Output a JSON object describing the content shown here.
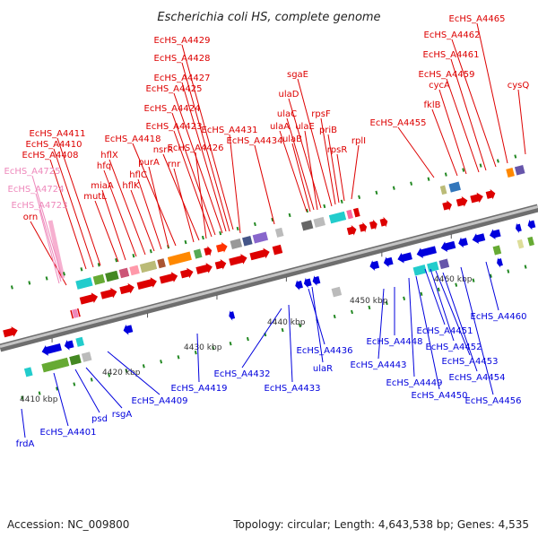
{
  "title": "Escherichia coli HS, complete genome",
  "footer": {
    "accession": "Accession: NC_009800",
    "summary": "Topology: circular; Length: 4,643,538 bp; Genes: 4,535"
  },
  "colors": {
    "forward": "#dd0000",
    "reverse": "#0000dd",
    "pseudo": "#ee88bb",
    "backbone": "#9a9a9a",
    "tick": "#228822"
  },
  "axis_ticks": [
    "4410 kbp",
    "4420 kbp",
    "4430 kbp",
    "4440 kbp",
    "4450 kbp",
    "4460 kbp"
  ],
  "top_labels": [
    "EcHS_A4465",
    "EcHS_A4462",
    "EcHS_A4461",
    "EcHS_A4459",
    "cysQ",
    "cycA",
    "fklB",
    "EcHS_A4455",
    "rplI",
    "rpsR",
    "priB",
    "rpsF",
    "sgaE",
    "ulaD",
    "ulaC",
    "ulaE",
    "ulaA",
    "ulaB",
    "EcHS_A4429",
    "EcHS_A4428",
    "EcHS_A4427",
    "EcHS_A4425",
    "EcHS_A4424",
    "EcHS_A4423",
    "EcHS_A4431",
    "EcHS_A4434",
    "EcHS_A4426",
    "nsrR",
    "rnr",
    "EcHS_A4418",
    "purA",
    "hflC",
    "hflK",
    "hflX",
    "hfq",
    "miaA",
    "mutL",
    "EcHS_A4411",
    "EcHS_A4410",
    "EcHS_A4408",
    "orn"
  ],
  "pseudo_labels": [
    "EcHS_A4725",
    "EcHS_A4724",
    "EcHS_A4723"
  ],
  "bottom_labels": [
    "EcHS_A4460",
    "EcHS_A4451",
    "EcHS_A4452",
    "EcHS_A4453",
    "EcHS_A4454",
    "EcHS_A4456",
    "EcHS_A4448",
    "EcHS_A4443",
    "EcHS_A4449",
    "EcHS_A4450",
    "EcHS_A4436",
    "ulaR",
    "EcHS_A4432",
    "EcHS_A4433",
    "EcHS_A4419",
    "EcHS_A4409",
    "rsgA",
    "psd",
    "EcHS_A4401",
    "frdA"
  ]
}
